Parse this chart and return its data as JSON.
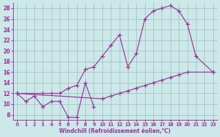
{
  "xlabel": "Windchill (Refroidissement éolien,°C)",
  "xlim": [
    -0.5,
    23.5
  ],
  "ylim": [
    7,
    29
  ],
  "yticks": [
    8,
    10,
    12,
    14,
    16,
    18,
    20,
    22,
    24,
    26,
    28
  ],
  "xticks": [
    0,
    1,
    2,
    3,
    4,
    5,
    6,
    7,
    8,
    9,
    10,
    11,
    12,
    13,
    14,
    15,
    16,
    17,
    18,
    19,
    20,
    21,
    22,
    23
  ],
  "line_color": "#993399",
  "bg_color": "#cce8e8",
  "grid_color": "#99bbbb",
  "lines": [
    {
      "x": [
        0,
        1,
        2,
        3,
        4,
        5,
        6,
        7,
        8,
        9,
        10,
        11,
        12,
        13,
        14,
        15,
        16,
        17,
        18,
        19,
        20,
        21,
        22,
        23
      ],
      "y": [
        12,
        10.5,
        11.5,
        9.5,
        10.5,
        10.5,
        7.5,
        7.5,
        14,
        9.5,
        null,
        null,
        null,
        null,
        null,
        null,
        null,
        null,
        null,
        null,
        null,
        null,
        null,
        null
      ]
    },
    {
      "x": [
        0,
        3,
        4,
        5,
        6,
        7,
        8,
        9,
        10,
        11,
        12,
        13,
        14,
        15,
        16,
        17,
        18,
        19,
        20,
        21,
        23
      ],
      "y": [
        12,
        12,
        12,
        12,
        13,
        13.5,
        16.5,
        17,
        19,
        21,
        23,
        17,
        19.5,
        26,
        27.5,
        28,
        28.5,
        27.5,
        25,
        19,
        16
      ]
    },
    {
      "x": [
        0,
        10,
        11,
        12,
        13,
        14,
        15,
        16,
        17,
        18,
        19,
        20,
        23
      ],
      "y": [
        12,
        11,
        11.5,
        12,
        12.5,
        13,
        13.5,
        14,
        14.5,
        15,
        15.5,
        16,
        16
      ]
    }
  ]
}
